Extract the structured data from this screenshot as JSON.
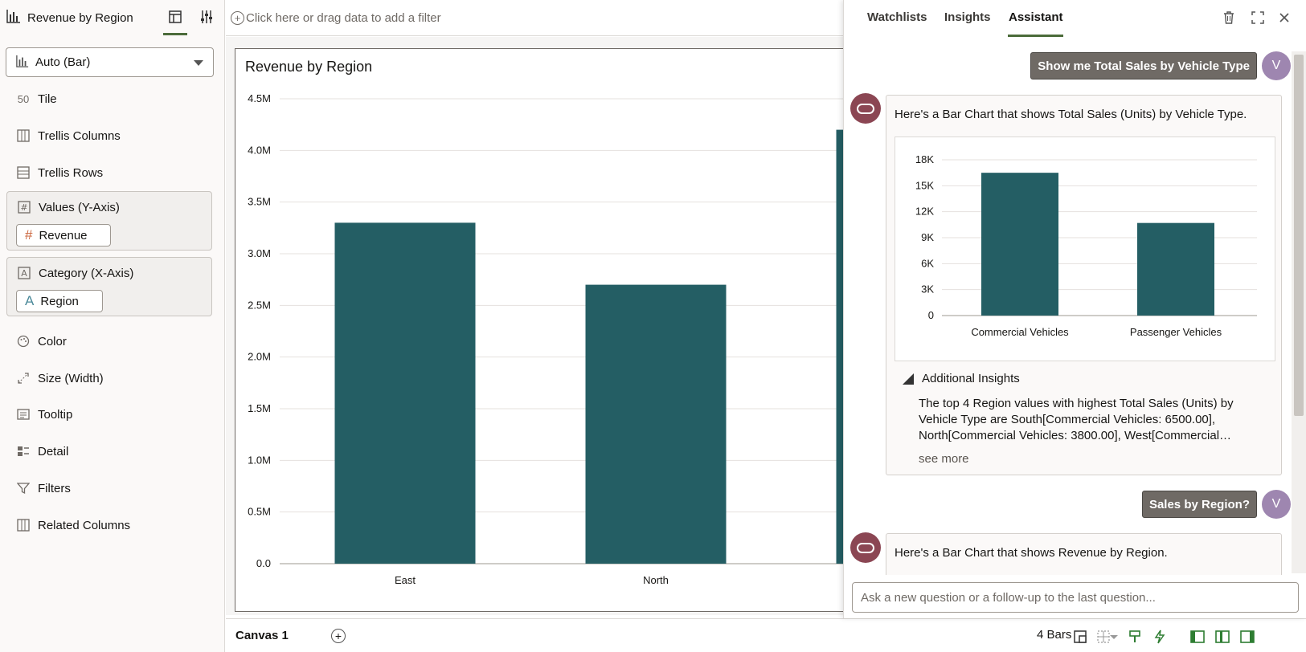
{
  "left_panel": {
    "viz_title": "Revenue by Region",
    "viz_type": "Auto (Bar)",
    "rows": {
      "tile": "Tile",
      "trellis_columns": "Trellis Columns",
      "trellis_rows": "Trellis Rows",
      "color": "Color",
      "size": "Size (Width)",
      "tooltip": "Tooltip",
      "detail": "Detail",
      "filters": "Filters",
      "related_columns": "Related Columns"
    },
    "values_zone": {
      "label": "Values (Y-Axis)",
      "pill": "Revenue"
    },
    "category_zone": {
      "label": "Category (X-Axis)",
      "pill": "Region"
    },
    "tile_icon_text": "50"
  },
  "filter_bar": {
    "placeholder": "Click here or drag data to add a filter"
  },
  "chart_data": [
    {
      "type": "bar",
      "title": "Revenue by Region",
      "categories": [
        "East",
        "North"
      ],
      "values": [
        3300000,
        2700000
      ],
      "clipped_bar_value": 4200000,
      "yticks": [
        "0.0",
        "0.5M",
        "1.0M",
        "1.5M",
        "2.0M",
        "2.5M",
        "3.0M",
        "3.5M",
        "4.0M",
        "4.5M"
      ],
      "ylim": [
        0,
        4500000
      ],
      "grid": true,
      "color": "#245e64"
    },
    {
      "type": "bar",
      "categories": [
        "Commercial Vehicles",
        "Passenger Vehicles"
      ],
      "values": [
        16500,
        10700
      ],
      "yticks": [
        "0",
        "3K",
        "6K",
        "9K",
        "12K",
        "15K",
        "18K"
      ],
      "ylim": [
        0,
        18000
      ],
      "grid": true,
      "color": "#245e64"
    }
  ],
  "bottom_bar": {
    "canvas_tab": "Canvas 1",
    "bar_count": "4 Bars"
  },
  "right_panel": {
    "tabs": [
      "Watchlists",
      "Insights",
      "Assistant"
    ],
    "active_tab": "Assistant",
    "user_avatar": "V",
    "messages": {
      "q1": "Show me Total Sales by Vehicle Type",
      "a1": "Here's a Bar Chart that shows Total Sales (Units) by Vehicle Type.",
      "insights_title": "Additional Insights",
      "insights_text": "The top 4 Region values with highest Total Sales (Units) by Vehicle Type are South[Commercial Vehicles: 6500.00], North[Commercial Vehicles: 3800.00], West[Commercial…",
      "see_more": "see more",
      "q2": "Sales by Region?",
      "a2": "Here's a Bar Chart that shows Revenue by Region."
    },
    "ask_placeholder": "Ask a new question or a follow-up to the last question..."
  }
}
